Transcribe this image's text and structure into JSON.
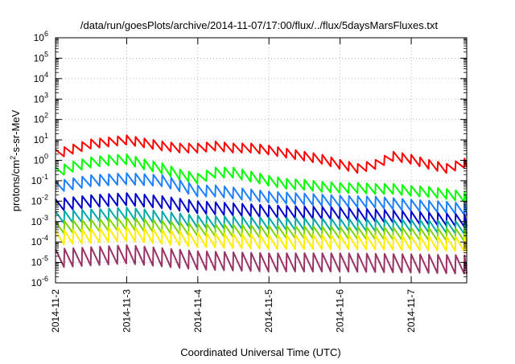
{
  "chart_data": {
    "type": "line",
    "title": "/data/run/goesPlots/archive/2014-11-07/17:00/flux/../flux/5daysMarsFluxes.txt",
    "xlabel": "Coordinated Universal Time (UTC)",
    "ylabel": "protons/cm²-s-sr-MeV",
    "ylabel_base": "protons/cm",
    "ylabel_sup": "2",
    "ylabel_rest": "-s-sr-MeV",
    "y_scale": "log",
    "ylim_exp": [
      -6,
      6
    ],
    "y_ticks": [
      {
        "base": "10",
        "exp": "-6"
      },
      {
        "base": "10",
        "exp": "-5"
      },
      {
        "base": "10",
        "exp": "-4"
      },
      {
        "base": "10",
        "exp": "-3"
      },
      {
        "base": "10",
        "exp": "-2"
      },
      {
        "base": "10",
        "exp": "-1"
      },
      {
        "base": "10",
        "exp": "0"
      },
      {
        "base": "10",
        "exp": "1"
      },
      {
        "base": "10",
        "exp": "2"
      },
      {
        "base": "10",
        "exp": "3"
      },
      {
        "base": "10",
        "exp": "4"
      },
      {
        "base": "10",
        "exp": "5"
      },
      {
        "base": "10",
        "exp": "6"
      }
    ],
    "xlim_days": [
      2.0,
      7.78
    ],
    "x_ticks": [
      {
        "label": "2014-11-2",
        "day": 2
      },
      {
        "label": "2014-11-3",
        "day": 3
      },
      {
        "label": "2014-11-4",
        "day": 4
      },
      {
        "label": "2014-11-5",
        "day": 5
      },
      {
        "label": "2014-11-6",
        "day": 6
      },
      {
        "label": "2014-11-7",
        "day": 7
      }
    ],
    "grid": true,
    "series": [
      {
        "color": "#ff0000",
        "oscillation": 0.45,
        "envelope": [
          [
            2.0,
            0.3
          ],
          [
            2.25,
            0.55
          ],
          [
            2.5,
            0.8
          ],
          [
            2.75,
            0.9
          ],
          [
            3.0,
            1.0
          ],
          [
            3.25,
            0.85
          ],
          [
            3.5,
            0.7
          ],
          [
            3.75,
            0.6
          ],
          [
            4.0,
            0.6
          ],
          [
            4.25,
            0.7
          ],
          [
            4.5,
            0.6
          ],
          [
            4.75,
            0.6
          ],
          [
            5.0,
            0.5
          ],
          [
            5.25,
            0.35
          ],
          [
            5.5,
            0.2
          ],
          [
            5.75,
            0.05
          ],
          [
            6.0,
            -0.2
          ],
          [
            6.25,
            -0.4
          ],
          [
            6.5,
            -0.2
          ],
          [
            6.75,
            0.2
          ],
          [
            7.0,
            0.05
          ],
          [
            7.25,
            -0.2
          ],
          [
            7.5,
            -0.4
          ],
          [
            7.6,
            -0.3
          ],
          [
            7.78,
            -0.1
          ]
        ]
      },
      {
        "color": "#00ff00",
        "oscillation": 0.5,
        "envelope": [
          [
            2.0,
            -0.6
          ],
          [
            2.25,
            -0.3
          ],
          [
            2.5,
            -0.1
          ],
          [
            2.75,
            0.0
          ],
          [
            3.0,
            0.05
          ],
          [
            3.25,
            -0.2
          ],
          [
            3.5,
            -0.4
          ],
          [
            3.75,
            -0.7
          ],
          [
            4.0,
            -0.9
          ],
          [
            4.25,
            -0.6
          ],
          [
            4.5,
            -0.6
          ],
          [
            4.75,
            -0.8
          ],
          [
            5.0,
            -1.0
          ],
          [
            5.25,
            -1.15
          ],
          [
            5.5,
            -1.2
          ],
          [
            5.75,
            -1.3
          ],
          [
            6.0,
            -1.35
          ],
          [
            6.25,
            -1.35
          ],
          [
            6.5,
            -1.4
          ],
          [
            6.75,
            -1.4
          ],
          [
            7.0,
            -1.5
          ],
          [
            7.25,
            -1.55
          ],
          [
            7.5,
            -1.65
          ],
          [
            7.78,
            -1.8
          ]
        ]
      },
      {
        "color": "#1e7fff",
        "oscillation": 0.55,
        "envelope": [
          [
            2.0,
            -1.3
          ],
          [
            2.5,
            -1.0
          ],
          [
            3.0,
            -0.9
          ],
          [
            3.5,
            -1.0
          ],
          [
            3.75,
            -1.25
          ],
          [
            4.0,
            -1.5
          ],
          [
            4.25,
            -1.5
          ],
          [
            4.5,
            -1.6
          ],
          [
            5.0,
            -1.8
          ],
          [
            5.5,
            -1.9
          ],
          [
            6.0,
            -2.0
          ],
          [
            6.5,
            -2.05
          ],
          [
            7.0,
            -2.2
          ],
          [
            7.5,
            -2.3
          ],
          [
            7.78,
            -2.4
          ]
        ]
      },
      {
        "color": "#0000cc",
        "oscillation": 0.6,
        "envelope": [
          [
            2.0,
            -2.2
          ],
          [
            2.5,
            -2.0
          ],
          [
            3.0,
            -1.9
          ],
          [
            3.5,
            -2.05
          ],
          [
            4.0,
            -2.3
          ],
          [
            4.5,
            -2.4
          ],
          [
            5.0,
            -2.5
          ],
          [
            5.5,
            -2.55
          ],
          [
            6.0,
            -2.6
          ],
          [
            6.5,
            -2.7
          ],
          [
            7.0,
            -2.8
          ],
          [
            7.5,
            -2.9
          ],
          [
            7.78,
            -2.95
          ]
        ]
      },
      {
        "color": "#00a8a8",
        "oscillation": 0.6,
        "envelope": [
          [
            2.0,
            -2.8
          ],
          [
            3.0,
            -2.6
          ],
          [
            3.5,
            -2.8
          ],
          [
            4.0,
            -3.0
          ],
          [
            5.0,
            -3.1
          ],
          [
            6.0,
            -3.15
          ],
          [
            7.0,
            -3.2
          ],
          [
            7.78,
            -3.3
          ]
        ]
      },
      {
        "color": "#7fd400",
        "oscillation": 0.6,
        "envelope": [
          [
            2.0,
            -3.3
          ],
          [
            3.0,
            -3.1
          ],
          [
            4.0,
            -3.4
          ],
          [
            5.0,
            -3.5
          ],
          [
            6.0,
            -3.55
          ],
          [
            7.0,
            -3.6
          ],
          [
            7.78,
            -3.65
          ]
        ]
      },
      {
        "color": "#ffee00",
        "oscillation": 0.7,
        "envelope": [
          [
            2.0,
            -3.8
          ],
          [
            3.0,
            -3.6
          ],
          [
            4.0,
            -3.9
          ],
          [
            5.0,
            -4.0
          ],
          [
            6.0,
            -4.0
          ],
          [
            7.0,
            -4.05
          ],
          [
            7.78,
            -4.1
          ]
        ]
      },
      {
        "color": "#993366",
        "oscillation": 0.9,
        "envelope": [
          [
            2.0,
            -4.8
          ],
          [
            3.0,
            -4.6
          ],
          [
            4.0,
            -4.9
          ],
          [
            5.0,
            -5.0
          ],
          [
            6.0,
            -5.0
          ],
          [
            7.0,
            -5.05
          ],
          [
            7.78,
            -5.1
          ]
        ]
      }
    ]
  }
}
